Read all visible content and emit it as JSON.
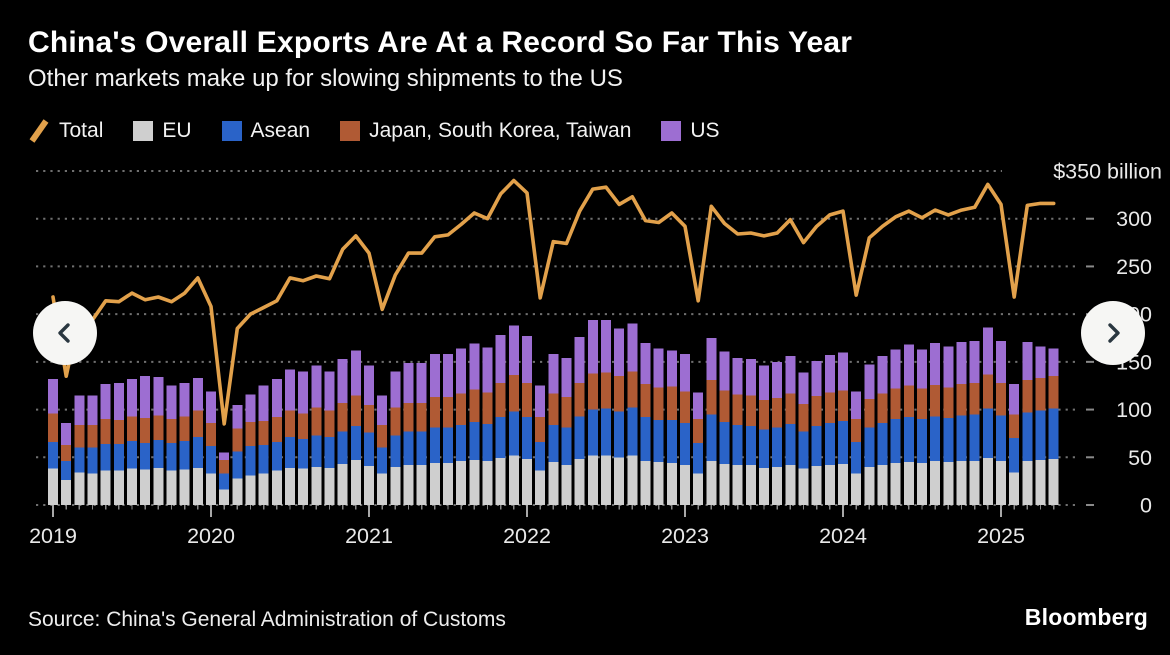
{
  "chart_data": {
    "type": "bar",
    "stacked": true,
    "title": "China's Overall Exports Are At a Record So Far This Year",
    "subtitle": "Other markets make up for slowing shipments to the US",
    "unit": "US$ billion",
    "ylim": [
      0,
      350
    ],
    "grid": "dotted-horizontal",
    "legend_position": "top-left",
    "yticks": [
      0,
      50,
      100,
      150,
      200,
      250,
      300,
      350
    ],
    "ytick_labels": [
      "0",
      "50",
      "100",
      "150",
      "200",
      "250",
      "300",
      "$350 billion"
    ],
    "xticks": [
      "2019",
      "2020",
      "2021",
      "2022",
      "2023",
      "2024",
      "2025"
    ],
    "x": [
      "2019-01",
      "2019-02",
      "2019-03",
      "2019-04",
      "2019-05",
      "2019-06",
      "2019-07",
      "2019-08",
      "2019-09",
      "2019-10",
      "2019-11",
      "2019-12",
      "2020-01",
      "2020-02",
      "2020-03",
      "2020-04",
      "2020-05",
      "2020-06",
      "2020-07",
      "2020-08",
      "2020-09",
      "2020-10",
      "2020-11",
      "2020-12",
      "2021-01",
      "2021-02",
      "2021-03",
      "2021-04",
      "2021-05",
      "2021-06",
      "2021-07",
      "2021-08",
      "2021-09",
      "2021-10",
      "2021-11",
      "2021-12",
      "2022-01",
      "2022-02",
      "2022-03",
      "2022-04",
      "2022-05",
      "2022-06",
      "2022-07",
      "2022-08",
      "2022-09",
      "2022-10",
      "2022-11",
      "2022-12",
      "2023-01",
      "2023-02",
      "2023-03",
      "2023-04",
      "2023-05",
      "2023-06",
      "2023-07",
      "2023-08",
      "2023-09",
      "2023-10",
      "2023-11",
      "2023-12",
      "2024-01",
      "2024-02",
      "2024-03",
      "2024-04",
      "2024-05",
      "2024-06",
      "2024-07",
      "2024-08",
      "2024-09",
      "2024-10",
      "2024-11",
      "2024-12",
      "2025-01",
      "2025-02",
      "2025-03",
      "2025-04",
      "2025-05"
    ],
    "series": [
      {
        "name": "EU",
        "kind": "bar",
        "color": "#cfcfcf",
        "values": [
          38,
          26,
          34,
          33,
          36,
          36,
          38,
          37,
          39,
          36,
          37,
          39,
          33,
          16,
          28,
          31,
          33,
          36,
          39,
          38,
          40,
          39,
          43,
          47,
          41,
          33,
          40,
          42,
          42,
          44,
          44,
          46,
          47,
          46,
          49,
          52,
          48,
          36,
          45,
          42,
          48,
          52,
          52,
          50,
          52,
          46,
          45,
          44,
          42,
          33,
          46,
          43,
          42,
          42,
          39,
          40,
          42,
          38,
          41,
          42,
          43,
          33,
          40,
          42,
          44,
          45,
          44,
          46,
          45,
          46,
          46,
          49,
          46,
          34,
          46,
          47,
          48
        ]
      },
      {
        "name": "Asean",
        "kind": "bar",
        "color": "#2a63c8",
        "values": [
          28,
          20,
          26,
          27,
          28,
          28,
          29,
          28,
          29,
          29,
          30,
          32,
          29,
          17,
          28,
          31,
          30,
          30,
          32,
          31,
          33,
          32,
          34,
          36,
          35,
          27,
          33,
          35,
          35,
          37,
          37,
          38,
          40,
          39,
          43,
          46,
          44,
          30,
          39,
          39,
          45,
          48,
          49,
          48,
          50,
          46,
          44,
          45,
          44,
          32,
          49,
          44,
          42,
          41,
          40,
          41,
          43,
          39,
          42,
          44,
          45,
          33,
          41,
          44,
          46,
          47,
          46,
          47,
          46,
          48,
          49,
          52,
          48,
          36,
          51,
          52,
          53
        ]
      },
      {
        "name": "Japan, South Korea, Taiwan",
        "kind": "bar",
        "color": "#b05a34",
        "values": [
          30,
          17,
          24,
          24,
          26,
          25,
          26,
          26,
          26,
          25,
          26,
          28,
          24,
          14,
          24,
          25,
          25,
          26,
          28,
          27,
          29,
          28,
          30,
          32,
          29,
          24,
          29,
          30,
          30,
          32,
          32,
          33,
          34,
          33,
          36,
          38,
          36,
          26,
          33,
          32,
          35,
          38,
          38,
          37,
          38,
          35,
          34,
          35,
          33,
          25,
          36,
          33,
          32,
          32,
          31,
          31,
          32,
          29,
          31,
          32,
          32,
          24,
          30,
          31,
          32,
          33,
          32,
          33,
          32,
          33,
          33,
          36,
          34,
          25,
          34,
          34,
          34
        ]
      },
      {
        "name": "US",
        "kind": "bar",
        "color": "#9d6ed2",
        "values": [
          36,
          23,
          31,
          31,
          37,
          39,
          39,
          44,
          40,
          35,
          35,
          34,
          33,
          8,
          25,
          29,
          37,
          40,
          43,
          44,
          44,
          41,
          46,
          47,
          41,
          31,
          38,
          42,
          42,
          45,
          45,
          47,
          48,
          47,
          50,
          52,
          49,
          33,
          41,
          41,
          48,
          56,
          55,
          50,
          50,
          43,
          41,
          38,
          39,
          28,
          44,
          41,
          38,
          38,
          36,
          38,
          39,
          33,
          37,
          39,
          40,
          29,
          36,
          39,
          41,
          43,
          41,
          44,
          43,
          44,
          44,
          49,
          44,
          32,
          40,
          33,
          29
        ]
      },
      {
        "name": "Total",
        "kind": "line",
        "color": "#e2a14b",
        "values": [
          218,
          135,
          199,
          194,
          214,
          213,
          222,
          215,
          218,
          213,
          222,
          238,
          208,
          85,
          185,
          200,
          207,
          214,
          238,
          235,
          240,
          237,
          268,
          282,
          264,
          205,
          241,
          264,
          264,
          281,
          283,
          294,
          306,
          300,
          326,
          340,
          327,
          217,
          276,
          274,
          308,
          331,
          333,
          315,
          323,
          298,
          296,
          306,
          292,
          214,
          313,
          295,
          284,
          285,
          282,
          285,
          299,
          275,
          292,
          304,
          308,
          220,
          280,
          292,
          302,
          308,
          301,
          309,
          304,
          309,
          312,
          336,
          315,
          218,
          314,
          316,
          316
        ]
      }
    ]
  },
  "legend": {
    "items": [
      {
        "label": "Total",
        "swatch": "line",
        "color": "#e2a14b"
      },
      {
        "label": "EU",
        "swatch": "square",
        "color": "#cfcfcf"
      },
      {
        "label": "Asean",
        "swatch": "square",
        "color": "#2a63c8"
      },
      {
        "label": "Japan, South Korea, Taiwan",
        "swatch": "square",
        "color": "#b05a34"
      },
      {
        "label": "US",
        "swatch": "square",
        "color": "#9d6ed2"
      }
    ]
  },
  "nav": {
    "prev": "Previous chart",
    "next": "Next chart"
  },
  "footer": {
    "source": "Source: China's General Administration of Customs",
    "brand": "Bloomberg"
  },
  "colors": {
    "background": "#000000",
    "grid": "#707070",
    "axis_text": "#e9e9e9",
    "line": "#e2a14b",
    "button_bg": "#f6f6f4",
    "button_chevron": "#2a3740"
  }
}
